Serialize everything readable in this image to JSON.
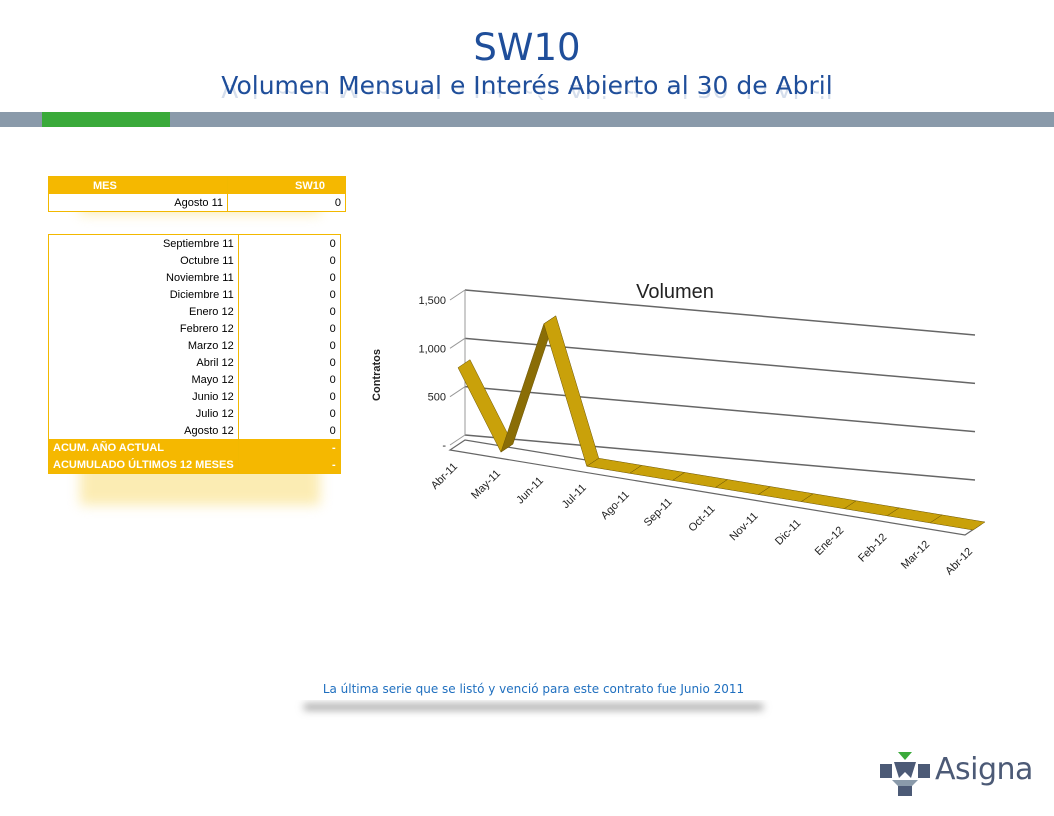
{
  "header": {
    "title": "SW10",
    "subtitle": "Volumen Mensual e Interés Abierto al 30 de Abril"
  },
  "colors": {
    "title": "#1f4e9a",
    "accent_band": "#3aaa3a",
    "band": "#8a9aaa",
    "table_header": "#f5b800",
    "series": "#c9a10a"
  },
  "table_top": {
    "col_month": "MES",
    "col_contract": "SW10",
    "rows": [
      {
        "month": "Agosto 11",
        "value": "0"
      }
    ]
  },
  "table_main": {
    "rows": [
      {
        "month": "Septiembre 11",
        "value": "0"
      },
      {
        "month": "Octubre 11",
        "value": "0"
      },
      {
        "month": "Noviembre 11",
        "value": "0"
      },
      {
        "month": "Diciembre 11",
        "value": "0"
      },
      {
        "month": "Enero 12",
        "value": "0"
      },
      {
        "month": "Febrero 12",
        "value": "0"
      },
      {
        "month": "Marzo 12",
        "value": "0"
      },
      {
        "month": "Abril 12",
        "value": "0"
      },
      {
        "month": "Mayo 12",
        "value": "0"
      },
      {
        "month": "Junio 12",
        "value": "0"
      },
      {
        "month": "Julio 12",
        "value": "0"
      },
      {
        "month": "Agosto 12",
        "value": "0"
      }
    ],
    "acum_year_label": "ACUM. AÑO ACTUAL",
    "acum_year_value": "-",
    "acum_12_label": "ACUMULADO ÚLTIMOS 12 MESES",
    "acum_12_value": "-"
  },
  "chart_data": {
    "type": "line",
    "title": "Volumen",
    "ylabel": "Contratos",
    "xlabel": "",
    "categories": [
      "Abr-11",
      "May-11",
      "Jun-11",
      "Jul-11",
      "Ago-11",
      "Sep-11",
      "Oct-11",
      "Nov-11",
      "Dic-11",
      "Ene-12",
      "Feb-12",
      "Mar-12",
      "Abr-12"
    ],
    "values": [
      800,
      0,
      1400,
      0,
      0,
      0,
      0,
      0,
      0,
      0,
      0,
      0,
      0
    ],
    "ylim": [
      0,
      1500
    ],
    "yticks": [
      "-",
      "500",
      "1,000",
      "1,500"
    ],
    "style": "3d-ribbon",
    "grid": true
  },
  "note": {
    "text": "La última serie que se listó y venció para este contrato fue Junio 2011"
  },
  "logo": {
    "text": "Asigna",
    "icon": "asigna-logo-icon"
  }
}
